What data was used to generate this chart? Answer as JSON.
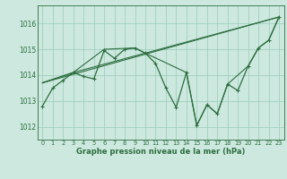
{
  "background_color": "#cce8df",
  "grid_color": "#99ccbb",
  "line_color": "#2d6e3e",
  "title": "Graphe pression niveau de la mer (hPa)",
  "xlim": [
    -0.5,
    23.5
  ],
  "ylim": [
    1011.5,
    1016.7
  ],
  "yticks": [
    1012,
    1013,
    1014,
    1015,
    1016
  ],
  "xticks": [
    0,
    1,
    2,
    3,
    4,
    5,
    6,
    7,
    8,
    9,
    10,
    11,
    12,
    13,
    14,
    15,
    16,
    17,
    18,
    19,
    20,
    21,
    22,
    23
  ],
  "series": [
    {
      "x": [
        0,
        1,
        2,
        3,
        4,
        5,
        6,
        7,
        8,
        9,
        10,
        11,
        12,
        13,
        14,
        15,
        16,
        17,
        18,
        19,
        20,
        21,
        22,
        23
      ],
      "y": [
        1012.8,
        1013.5,
        1013.8,
        1014.1,
        1013.95,
        1013.85,
        1014.95,
        1014.65,
        1015.0,
        1015.05,
        1014.85,
        1014.45,
        1013.5,
        1012.75,
        1014.1,
        1012.05,
        1012.85,
        1012.5,
        1013.65,
        1013.4,
        1014.35,
        1015.05,
        1015.35,
        1016.25
      ],
      "marker": true,
      "linewidth": 0.9
    },
    {
      "x": [
        0,
        23
      ],
      "y": [
        1013.7,
        1016.25
      ],
      "marker": false,
      "linewidth": 0.8
    },
    {
      "x": [
        0,
        3,
        6,
        9,
        10,
        23
      ],
      "y": [
        1013.7,
        1014.1,
        1015.0,
        1015.05,
        1014.85,
        1016.25
      ],
      "marker": false,
      "linewidth": 0.8
    },
    {
      "x": [
        0,
        3,
        10,
        14,
        15,
        16,
        17,
        18,
        20,
        21,
        22,
        23
      ],
      "y": [
        1013.7,
        1014.1,
        1014.85,
        1014.1,
        1012.05,
        1012.85,
        1012.5,
        1013.65,
        1014.35,
        1015.05,
        1015.35,
        1016.25
      ],
      "marker": false,
      "linewidth": 0.8
    }
  ]
}
